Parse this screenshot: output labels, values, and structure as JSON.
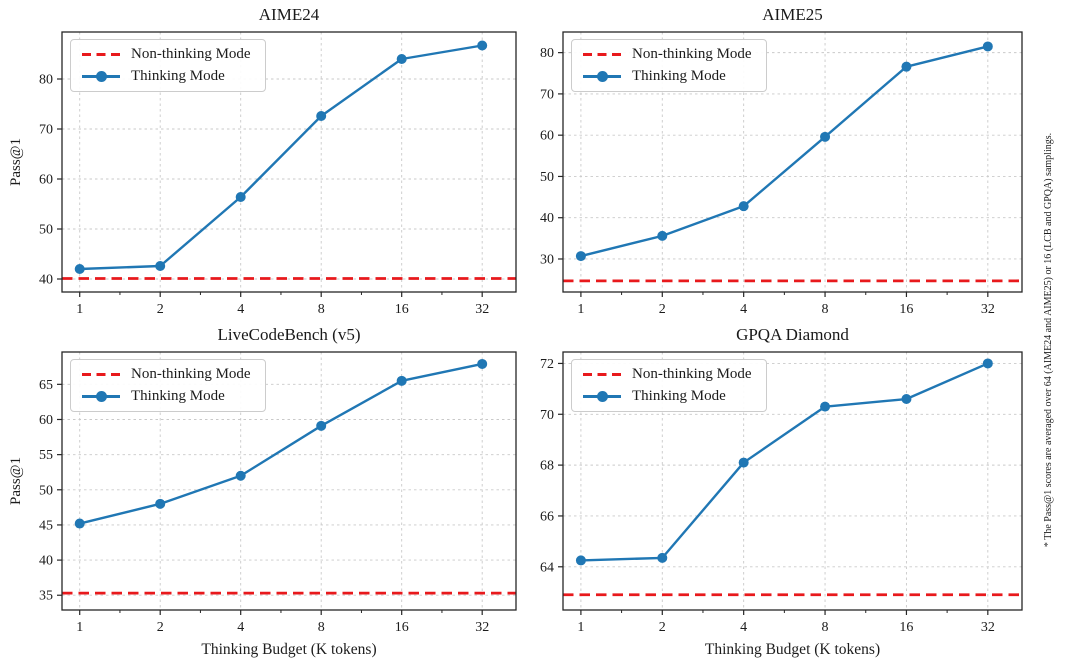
{
  "figure": {
    "background": "#ffffff",
    "side_note": "* The Pass@1 scores are averaged over 64 (AIME24 and AIME25) or 16 (LCB and GPQA) samplings."
  },
  "legend": {
    "non_thinking": "Non-thinking Mode",
    "thinking": "Thinking Mode"
  },
  "colors": {
    "thinking_line": "#2077b4",
    "non_thinking_line": "#e8191c",
    "grid": "#c9c9c9",
    "axis": "#262626",
    "text": "#1c1c1c"
  },
  "axes": {
    "xlabel": "Thinking Budget (K tokens)",
    "ylabel": "Pass@1",
    "x_ticks": [
      1,
      2,
      4,
      8,
      16,
      32
    ],
    "x_minor_ticks": [
      1.414,
      2.828,
      5.657,
      11.314,
      22.627
    ],
    "x_scale": "log2"
  },
  "chart_data": [
    {
      "type": "line",
      "title": "AIME24",
      "x": [
        1,
        2,
        4,
        8,
        16,
        32
      ],
      "series": [
        {
          "name": "Thinking Mode",
          "style": "solid-markers",
          "color_key": "thinking_line",
          "values": [
            42.0,
            42.6,
            56.4,
            72.6,
            84.0,
            86.7
          ]
        },
        {
          "name": "Non-thinking Mode",
          "style": "dashed-hline",
          "color_key": "non_thinking_line",
          "value": 40.1
        }
      ],
      "xlabel": "",
      "ylabel": "Pass@1",
      "x_ticks": [
        1,
        2,
        4,
        8,
        16,
        32
      ],
      "y_ticks": [
        40,
        50,
        60,
        70,
        80
      ],
      "ylim": [
        37.4,
        89.4
      ],
      "x_scale": "log2",
      "grid": true,
      "legend_position": "upper-left"
    },
    {
      "type": "line",
      "title": "AIME25",
      "x": [
        1,
        2,
        4,
        8,
        16,
        32
      ],
      "series": [
        {
          "name": "Thinking Mode",
          "style": "solid-markers",
          "color_key": "thinking_line",
          "values": [
            30.7,
            35.6,
            42.8,
            59.6,
            76.6,
            81.5
          ]
        },
        {
          "name": "Non-thinking Mode",
          "style": "dashed-hline",
          "color_key": "non_thinking_line",
          "value": 24.7
        }
      ],
      "xlabel": "",
      "ylabel": "",
      "x_ticks": [
        1,
        2,
        4,
        8,
        16,
        32
      ],
      "y_ticks": [
        30,
        40,
        50,
        60,
        70,
        80
      ],
      "ylim": [
        22.0,
        85.0
      ],
      "x_scale": "log2",
      "grid": true,
      "legend_position": "upper-left"
    },
    {
      "type": "line",
      "title": "LiveCodeBench (v5)",
      "x": [
        1,
        2,
        4,
        8,
        16,
        32
      ],
      "series": [
        {
          "name": "Thinking Mode",
          "style": "solid-markers",
          "color_key": "thinking_line",
          "values": [
            45.2,
            48.0,
            52.0,
            59.1,
            65.5,
            67.9
          ]
        },
        {
          "name": "Non-thinking Mode",
          "style": "dashed-hline",
          "color_key": "non_thinking_line",
          "value": 35.3
        }
      ],
      "xlabel": "Thinking Budget (K tokens)",
      "ylabel": "Pass@1",
      "x_ticks": [
        1,
        2,
        4,
        8,
        16,
        32
      ],
      "y_ticks": [
        35,
        40,
        45,
        50,
        55,
        60,
        65
      ],
      "ylim": [
        32.9,
        69.6
      ],
      "x_scale": "log2",
      "grid": true,
      "legend_position": "upper-left"
    },
    {
      "type": "line",
      "title": "GPQA Diamond",
      "x": [
        1,
        2,
        4,
        8,
        16,
        32
      ],
      "series": [
        {
          "name": "Thinking Mode",
          "style": "solid-markers",
          "color_key": "thinking_line",
          "values": [
            64.25,
            64.35,
            68.1,
            70.3,
            70.6,
            72.0
          ]
        },
        {
          "name": "Non-thinking Mode",
          "style": "dashed-hline",
          "color_key": "non_thinking_line",
          "value": 62.9
        }
      ],
      "xlabel": "Thinking Budget (K tokens)",
      "ylabel": "",
      "x_ticks": [
        1,
        2,
        4,
        8,
        16,
        32
      ],
      "y_ticks": [
        64,
        66,
        68,
        70,
        72
      ],
      "ylim": [
        62.3,
        72.45
      ],
      "x_scale": "log2",
      "grid": true,
      "legend_position": "upper-left"
    }
  ]
}
